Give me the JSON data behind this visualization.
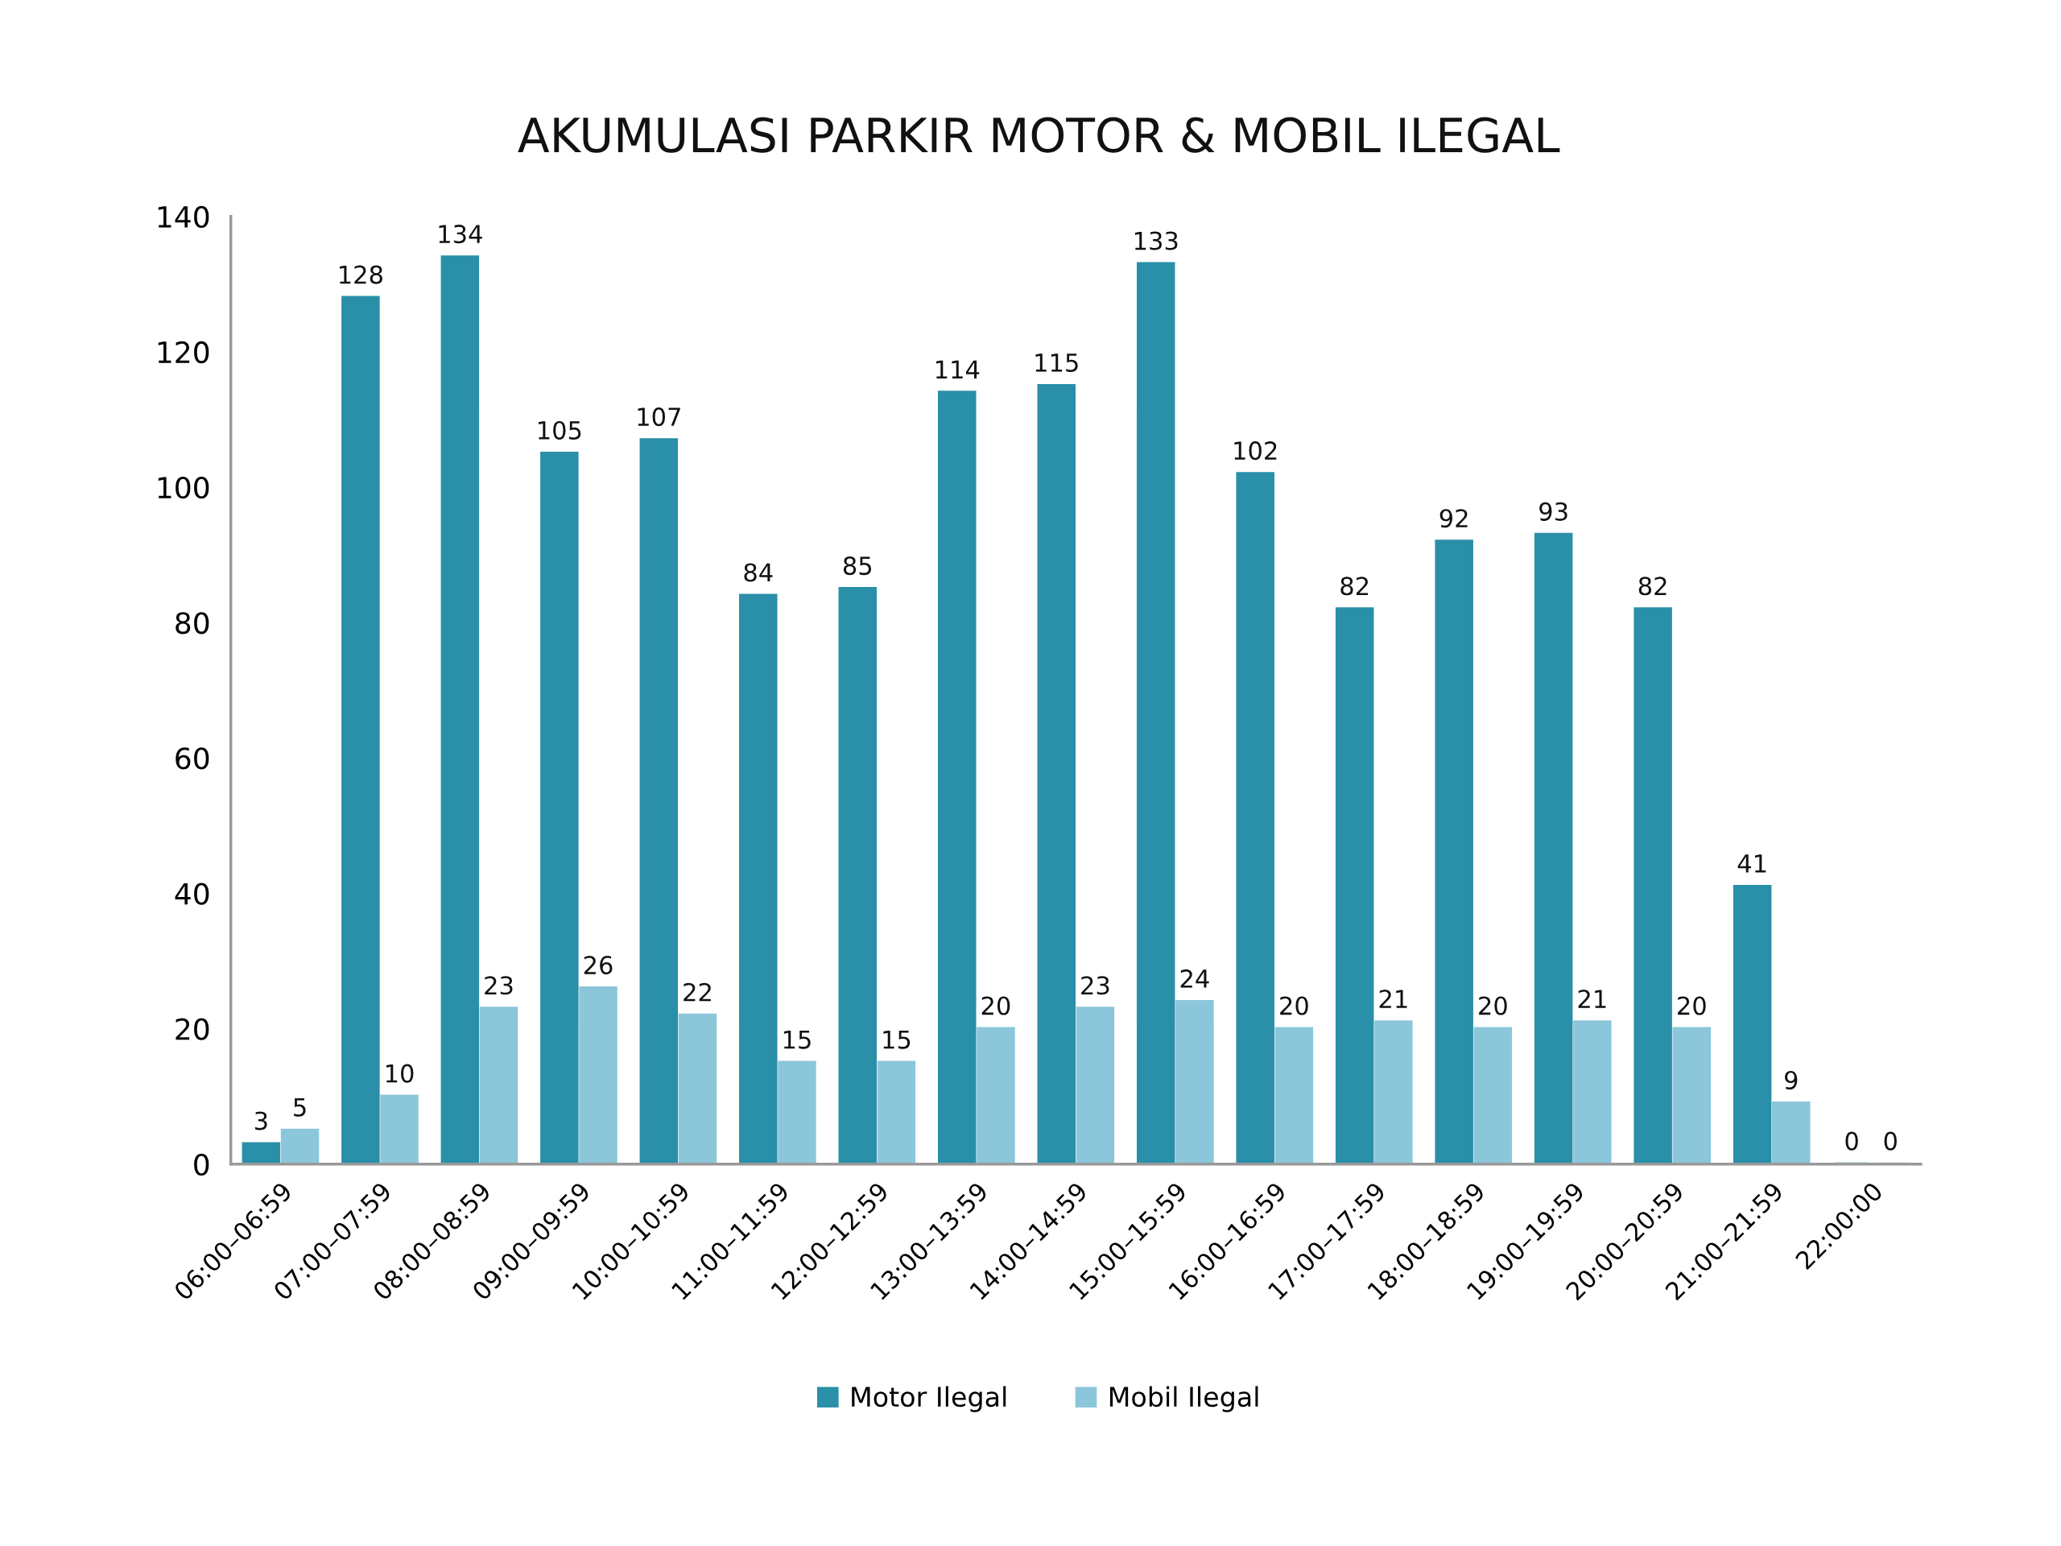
{
  "chart_data": {
    "type": "bar",
    "title": "AKUMULASI PARKIR MOTOR & MOBIL ILEGAL",
    "categories": [
      "06:00–06:59",
      "07:00–07:59",
      "08:00–08:59",
      "09:00–09:59",
      "10:00–10:59",
      "11:00–11:59",
      "12:00–12:59",
      "13:00–13:59",
      "14:00–14:59",
      "15:00–15:59",
      "16:00–16:59",
      "17:00–17:59",
      "18:00–18:59",
      "19:00–19:59",
      "20:00–20:59",
      "21:00–21:59",
      "22:00:00"
    ],
    "series": [
      {
        "name": "Motor Ilegal",
        "color": "#2a8fa8",
        "values": [
          3,
          128,
          134,
          105,
          107,
          84,
          85,
          114,
          115,
          133,
          102,
          82,
          92,
          93,
          82,
          41,
          0
        ]
      },
      {
        "name": "Mobil Ilegal",
        "color": "#8cc6da",
        "values": [
          5,
          10,
          23,
          26,
          22,
          15,
          15,
          20,
          23,
          24,
          20,
          21,
          20,
          21,
          20,
          9,
          0
        ]
      }
    ],
    "ylim": [
      0,
      140
    ],
    "yticks": [
      0,
      20,
      40,
      60,
      80,
      100,
      120,
      140
    ],
    "data_labels": true,
    "legend": "bottom",
    "grid": false
  }
}
